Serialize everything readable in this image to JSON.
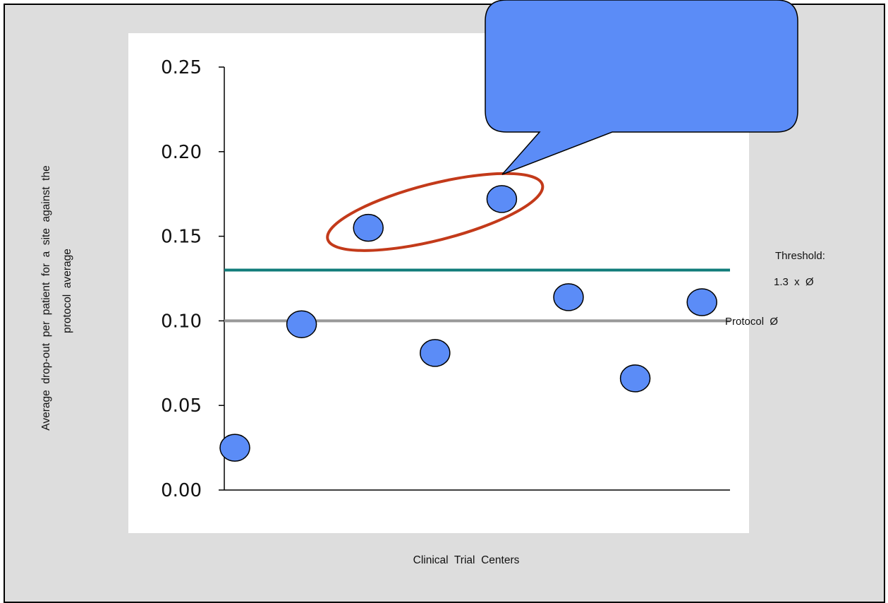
{
  "chart_data": {
    "type": "scatter",
    "title": "",
    "xlabel": "Clinical  Trial  Centers",
    "ylabel_line1": "Average  drop-out  per  patient  for  a  site  against  the",
    "ylabel_line2": "protocol  average",
    "ylim": [
      0,
      0.25
    ],
    "yticks": [
      "0.00",
      "0.05",
      "0.10",
      "0.15",
      "0.20",
      "0.25"
    ],
    "ytick_values": [
      0,
      0.05,
      0.1,
      0.15,
      0.2,
      0.25
    ],
    "grid": false,
    "points": [
      {
        "x": 1,
        "y": 0.025
      },
      {
        "x": 2,
        "y": 0.098
      },
      {
        "x": 3,
        "y": 0.155,
        "highlighted": true
      },
      {
        "x": 4,
        "y": 0.081
      },
      {
        "x": 5,
        "y": 0.172,
        "highlighted": true
      },
      {
        "x": 6,
        "y": 0.114
      },
      {
        "x": 7,
        "y": 0.066
      },
      {
        "x": 8,
        "y": 0.111
      }
    ],
    "reference_lines": [
      {
        "name": "threshold",
        "y": 0.13,
        "label_line1": "Threshold:",
        "label_line2": "1.3  x  Ø",
        "color": "#117c7a"
      },
      {
        "name": "protocol-average",
        "y": 0.1,
        "label": "Protocol  Ø",
        "color": "#999999"
      }
    ],
    "point_color": "#5b8cf7",
    "highlight_ellipse_color": "#c33a1a",
    "callout_color": "#5b8cf7",
    "callout_text": ""
  }
}
